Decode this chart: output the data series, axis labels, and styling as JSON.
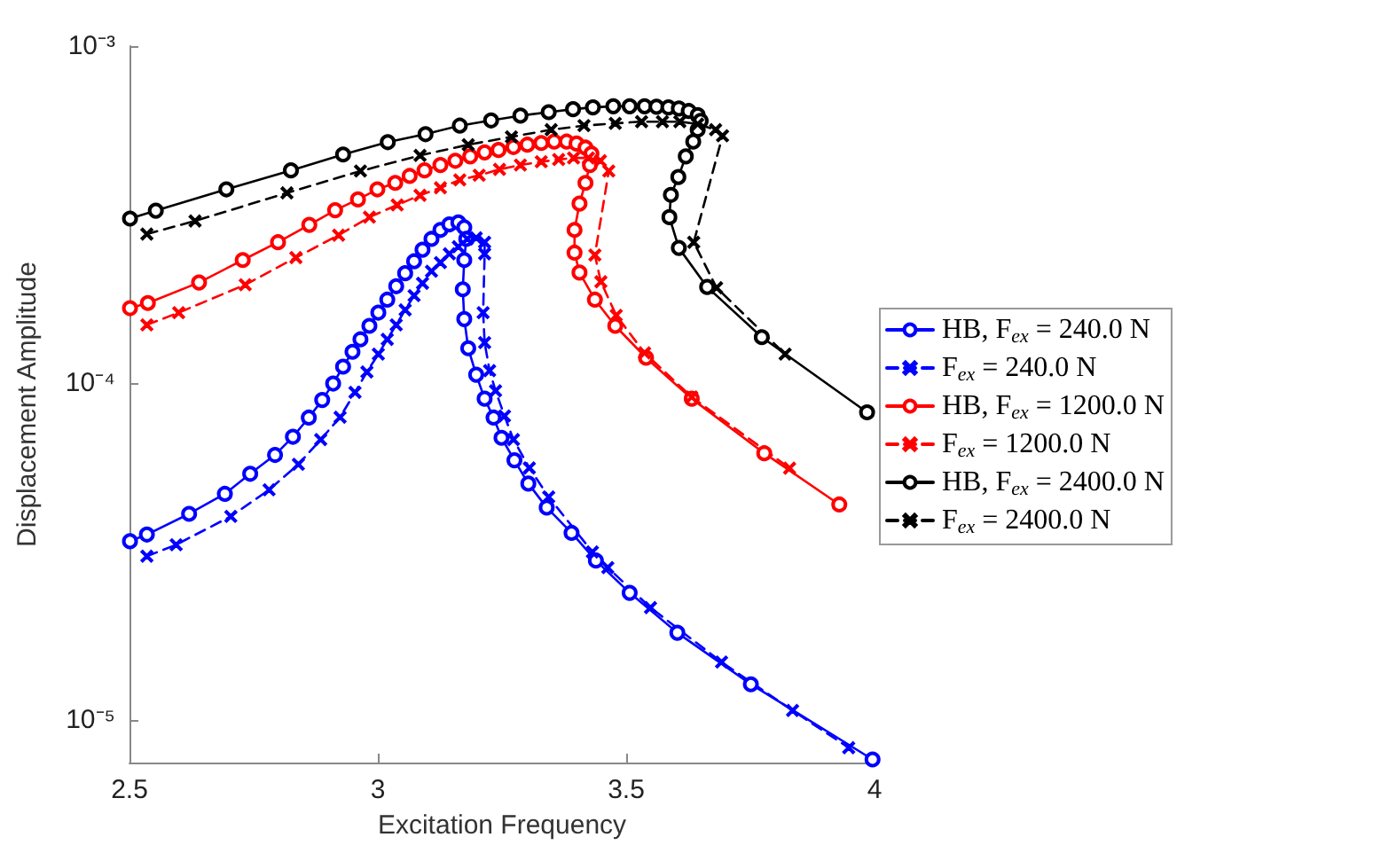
{
  "chart_data": {
    "type": "line",
    "xlabel": "Excitation Frequency",
    "ylabel": "Displacement Amplitude",
    "xlim": [
      2.5,
      4
    ],
    "xticks": [
      2.5,
      3,
      3.5,
      4
    ],
    "ylim": [
      7.5e-06,
      0.001
    ],
    "log": "y",
    "yticks": [
      {
        "value": 1e-05,
        "label": "10⁻⁵"
      },
      {
        "value": 0.0001,
        "label": "10⁻⁴"
      },
      {
        "value": 0.001,
        "label": "10⁻³"
      }
    ],
    "grid": false,
    "legend": "right",
    "series": [
      {
        "name": "HB, F$_{ex}$ = 240.0 N",
        "color": "#0000ff",
        "marker": "circle",
        "line_style": "solid",
        "x": [
          2.501,
          2.535,
          2.62,
          2.692,
          2.743,
          2.793,
          2.829,
          2.861,
          2.888,
          2.91,
          2.93,
          2.949,
          2.965,
          2.983,
          3.001,
          3.019,
          3.037,
          3.055,
          3.073,
          3.09,
          3.108,
          3.126,
          3.144,
          3.162,
          3.174,
          3.178,
          3.174,
          3.171,
          3.174,
          3.182,
          3.198,
          3.215,
          3.233,
          3.249,
          3.275,
          3.303,
          3.34,
          3.39,
          3.439,
          3.507,
          3.603,
          3.751,
          3.996
        ],
        "values": [
          3.4e-05,
          3.56e-05,
          4.1e-05,
          4.7e-05,
          5.39e-05,
          6.13e-05,
          6.94e-05,
          7.91e-05,
          8.92e-05,
          9.98e-05,
          0.000112,
          0.000124,
          0.000135,
          0.000148,
          0.000162,
          0.000177,
          0.000194,
          0.000212,
          0.00023,
          0.000249,
          0.000268,
          0.000285,
          0.000296,
          0.0003,
          0.00029,
          0.000268,
          0.000232,
          0.00019,
          0.000155,
          0.000127,
          0.000106,
          9e-05,
          7.91e-05,
          6.89e-05,
          5.91e-05,
          5.04e-05,
          4.28e-05,
          3.6e-05,
          2.98e-05,
          2.39e-05,
          1.82e-05,
          1.28e-05,
          7.66e-06
        ]
      },
      {
        "name": "F$_{ex}$ = 240.0 N",
        "color": "#0000ff",
        "marker": "cross",
        "line_style": "dashed",
        "x": [
          2.535,
          2.594,
          2.704,
          2.781,
          2.84,
          2.885,
          2.924,
          2.954,
          2.978,
          3.001,
          3.019,
          3.037,
          3.055,
          3.073,
          3.09,
          3.108,
          3.126,
          3.144,
          3.162,
          3.18,
          3.198,
          3.215,
          3.215,
          3.212,
          3.215,
          3.225,
          3.237,
          3.255,
          3.273,
          3.305,
          3.344,
          3.432,
          3.463,
          3.549,
          3.692,
          3.835,
          3.948
        ],
        "values": [
          3.07e-05,
          3.32e-05,
          4.03e-05,
          4.83e-05,
          5.75e-05,
          6.81e-05,
          7.93e-05,
          9.4e-05,
          0.000108,
          0.000122,
          0.000135,
          0.000149,
          0.000165,
          0.000182,
          0.000198,
          0.000215,
          0.000228,
          0.000242,
          0.000254,
          0.000268,
          0.00027,
          0.000262,
          0.000242,
          0.000162,
          0.000132,
          0.000109,
          9.5e-05,
          8e-05,
          6.81e-05,
          5.61e-05,
          4.6e-05,
          3.16e-05,
          2.84e-05,
          2.16e-05,
          1.49e-05,
          1.07e-05,
          8.3e-06
        ]
      },
      {
        "name": "HB, F$_{ex}$ = 1200.0 N",
        "color": "#ff0000",
        "marker": "circle",
        "line_style": "solid",
        "x": [
          2.501,
          2.537,
          2.64,
          2.728,
          2.799,
          2.862,
          2.914,
          2.96,
          2.999,
          3.035,
          3.064,
          3.094,
          3.126,
          3.156,
          3.186,
          3.215,
          3.243,
          3.273,
          3.301,
          3.329,
          3.355,
          3.38,
          3.4,
          3.418,
          3.43,
          3.427,
          3.418,
          3.406,
          3.396,
          3.396,
          3.406,
          3.437,
          3.478,
          3.54,
          3.632,
          3.778,
          3.929
        ],
        "values": [
          0.000167,
          0.000173,
          0.000199,
          0.000232,
          0.000262,
          0.000295,
          0.000326,
          0.000351,
          0.000376,
          0.000393,
          0.000412,
          0.000428,
          0.000444,
          0.000457,
          0.000471,
          0.000484,
          0.000492,
          0.000502,
          0.00051,
          0.000516,
          0.000521,
          0.000521,
          0.000514,
          0.0005,
          0.00048,
          0.000444,
          0.000393,
          0.000341,
          0.000285,
          0.000244,
          0.000213,
          0.000177,
          0.000148,
          0.000119,
          9e-05,
          6.2e-05,
          4.37e-05
        ]
      },
      {
        "name": "F$_{ex}$ = 1200.0 N",
        "color": "#ff0000",
        "marker": "cross",
        "line_style": "dashed",
        "x": [
          2.535,
          2.599,
          2.733,
          2.835,
          2.921,
          2.983,
          3.039,
          3.085,
          3.126,
          3.165,
          3.204,
          3.245,
          3.287,
          3.329,
          3.364,
          3.394,
          3.424,
          3.448,
          3.465,
          3.437,
          3.449,
          3.48,
          3.537,
          3.632,
          3.829
        ],
        "values": [
          0.000149,
          0.000162,
          0.000196,
          0.000236,
          0.000275,
          0.000311,
          0.000338,
          0.000361,
          0.00038,
          0.000401,
          0.000414,
          0.000431,
          0.000444,
          0.000454,
          0.000461,
          0.000466,
          0.000466,
          0.000457,
          0.000426,
          0.00024,
          0.0002,
          0.000159,
          0.000123,
          9.1e-05,
          5.6e-05
        ]
      },
      {
        "name": "HB, F$_{ex}$ = 2400.0 N",
        "color": "#000000",
        "marker": "circle",
        "line_style": "solid",
        "x": [
          2.501,
          2.553,
          2.695,
          2.825,
          2.93,
          3.02,
          3.096,
          3.165,
          3.228,
          3.287,
          3.344,
          3.393,
          3.433,
          3.474,
          3.507,
          3.537,
          3.561,
          3.585,
          3.606,
          3.626,
          3.644,
          3.65,
          3.644,
          3.635,
          3.62,
          3.605,
          3.59,
          3.587,
          3.606,
          3.663,
          3.773,
          3.985
        ],
        "values": [
          0.000308,
          0.000325,
          0.000376,
          0.000428,
          0.000477,
          0.000519,
          0.000548,
          0.000581,
          0.000602,
          0.000622,
          0.000637,
          0.00065,
          0.000658,
          0.000663,
          0.000663,
          0.000663,
          0.000661,
          0.000658,
          0.000653,
          0.000642,
          0.000624,
          0.0006,
          0.000565,
          0.000521,
          0.000471,
          0.000409,
          0.000362,
          0.000311,
          0.000252,
          0.000193,
          0.000137,
          8.2e-05
        ]
      },
      {
        "name": "F$_{ex}$ = 2400.0 N",
        "color": "#000000",
        "marker": "cross",
        "line_style": "dashed",
        "x": [
          2.535,
          2.632,
          2.817,
          2.965,
          3.085,
          3.182,
          3.269,
          3.349,
          3.415,
          3.478,
          3.531,
          3.573,
          3.608,
          3.644,
          3.68,
          3.694,
          3.636,
          3.682,
          3.82
        ],
        "values": [
          0.000277,
          0.000303,
          0.000367,
          0.000426,
          0.000474,
          0.00051,
          0.000538,
          0.000565,
          0.000581,
          0.00059,
          0.000597,
          0.000597,
          0.000597,
          0.000587,
          0.000565,
          0.000542,
          0.000262,
          0.000192,
          0.000122
        ]
      }
    ]
  }
}
